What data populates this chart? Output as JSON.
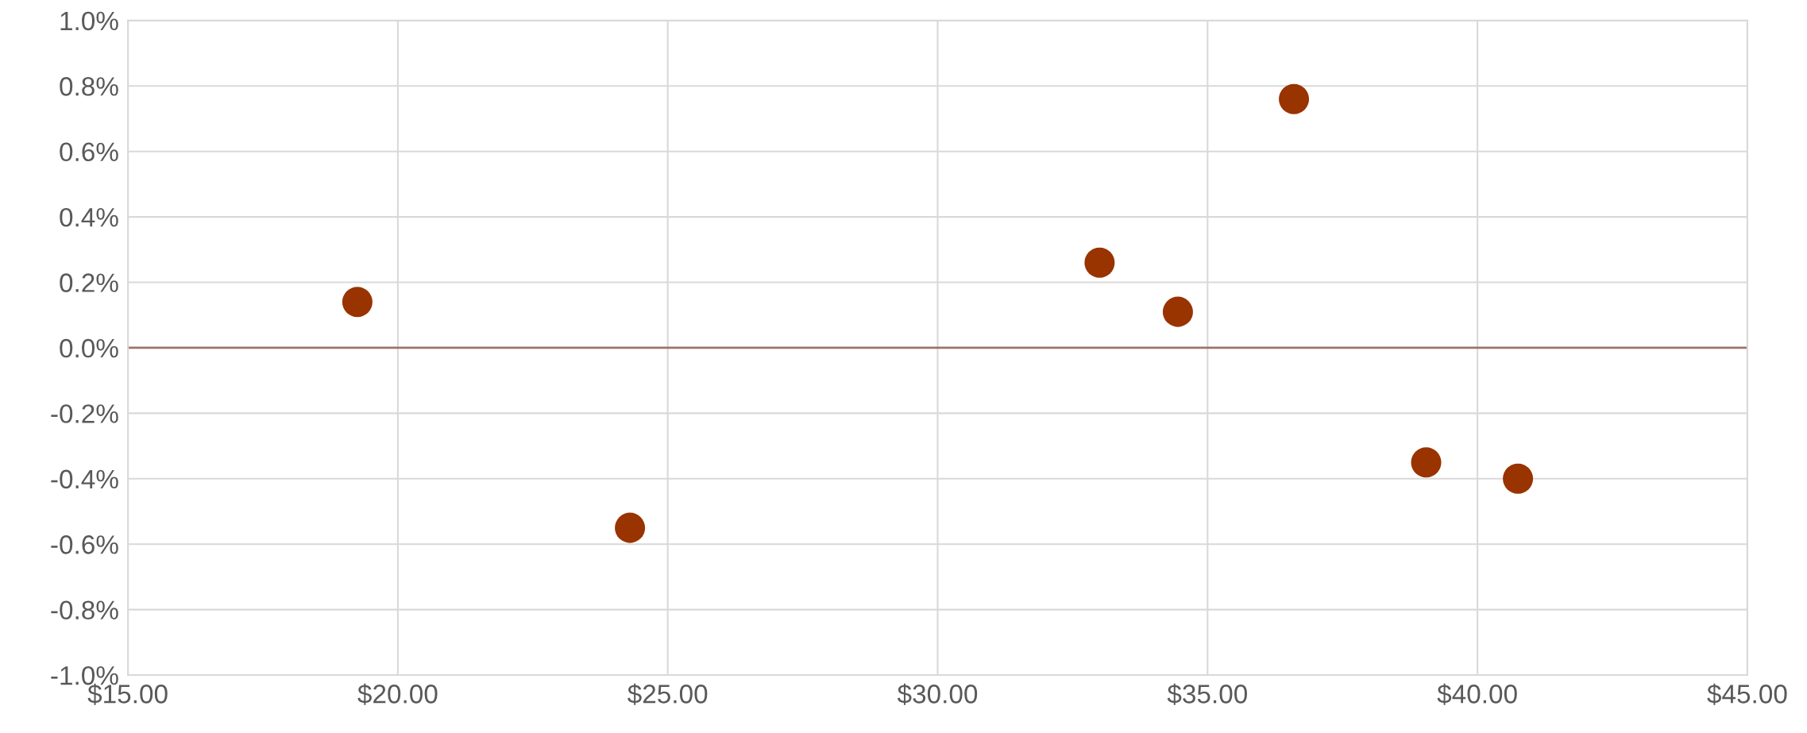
{
  "chart_data": {
    "type": "scatter",
    "x": [
      19.25,
      24.3,
      33.0,
      34.45,
      36.6,
      39.05,
      40.75
    ],
    "values": [
      0.14,
      -0.55,
      0.26,
      0.11,
      0.76,
      -0.35,
      -0.4
    ],
    "color": "#993300",
    "marker": "circle",
    "xlim": [
      15,
      45
    ],
    "ylim": [
      -1.0,
      1.0
    ],
    "xticks": [
      {
        "value": 15,
        "label": "$15.00"
      },
      {
        "value": 20,
        "label": "$20.00"
      },
      {
        "value": 25,
        "label": "$25.00"
      },
      {
        "value": 30,
        "label": "$30.00"
      },
      {
        "value": 35,
        "label": "$35.00"
      },
      {
        "value": 40,
        "label": "$40.00"
      },
      {
        "value": 45,
        "label": "$45.00"
      }
    ],
    "yticks": [
      {
        "value": -1.0,
        "label": "-1.0%"
      },
      {
        "value": -0.8,
        "label": "-0.8%"
      },
      {
        "value": -0.6,
        "label": "-0.6%"
      },
      {
        "value": -0.4,
        "label": "-0.4%"
      },
      {
        "value": -0.2,
        "label": "-0.2%"
      },
      {
        "value": 0.0,
        "label": "0.0%"
      },
      {
        "value": 0.2,
        "label": "0.2%"
      },
      {
        "value": 0.4,
        "label": "0.4%"
      },
      {
        "value": 0.6,
        "label": "0.6%"
      },
      {
        "value": 0.8,
        "label": "0.8%"
      },
      {
        "value": 1.0,
        "label": "1.0%"
      }
    ],
    "grid": true,
    "ref_lines": [
      {
        "axis": "y",
        "value": 0,
        "color": "#9e7468"
      }
    ]
  }
}
